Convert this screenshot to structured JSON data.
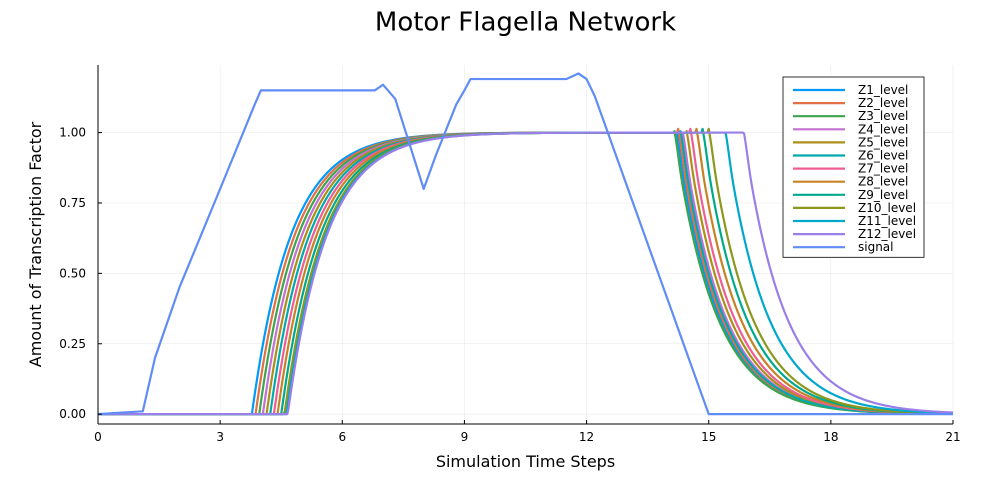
{
  "chart_data": {
    "type": "line",
    "title": "Motor Flagella Network",
    "xlabel": "Simulation Time Steps",
    "ylabel": "Amount of Transcription Factor",
    "xlim": [
      0,
      21
    ],
    "ylim": [
      -0.035,
      1.24
    ],
    "xticks": [
      0,
      3,
      6,
      9,
      12,
      15,
      18,
      21
    ],
    "xtick_labels": [
      "0",
      "3",
      "6",
      "9",
      "12",
      "15",
      "18",
      "21"
    ],
    "yticks": [
      0,
      0.25,
      0.5,
      0.75,
      1.0
    ],
    "ytick_labels": [
      "0.00",
      "0.25",
      "0.50",
      "0.75",
      "1.00"
    ],
    "grid": true,
    "legend_position": "top-right",
    "series": [
      {
        "name": "Z1_level",
        "color": "#009af9",
        "onset": 3.78,
        "decay_start": 14.2,
        "tau_rise": 0.95,
        "tau_decay": 1.0
      },
      {
        "name": "Z2_level",
        "color": "#e26f46",
        "onset": 3.87,
        "decay_start": 14.25,
        "tau_rise": 0.95,
        "tau_decay": 1.0
      },
      {
        "name": "Z3_level",
        "color": "#3da44d",
        "onset": 3.96,
        "decay_start": 14.15,
        "tau_rise": 0.95,
        "tau_decay": 1.0
      },
      {
        "name": "Z4_level",
        "color": "#c271d2",
        "onset": 4.05,
        "decay_start": 14.35,
        "tau_rise": 0.95,
        "tau_decay": 1.0
      },
      {
        "name": "Z5_level",
        "color": "#ac8e18",
        "onset": 4.14,
        "decay_start": 14.45,
        "tau_rise": 0.95,
        "tau_decay": 1.0
      },
      {
        "name": "Z6_level",
        "color": "#00a9ad",
        "onset": 4.23,
        "decay_start": 14.3,
        "tau_rise": 0.95,
        "tau_decay": 1.0
      },
      {
        "name": "Z7_level",
        "color": "#ed5e93",
        "onset": 4.32,
        "decay_start": 14.55,
        "tau_rise": 0.95,
        "tau_decay": 1.0
      },
      {
        "name": "Z8_level",
        "color": "#c68225",
        "onset": 4.41,
        "decay_start": 14.7,
        "tau_rise": 0.95,
        "tau_decay": 1.0
      },
      {
        "name": "Z9_level",
        "color": "#00a98d",
        "onset": 4.5,
        "decay_start": 14.85,
        "tau_rise": 0.95,
        "tau_decay": 1.0
      },
      {
        "name": "Z10_level",
        "color": "#8e971d",
        "onset": 4.58,
        "decay_start": 15.0,
        "tau_rise": 0.95,
        "tau_decay": 1.0
      },
      {
        "name": "Z11_level",
        "color": "#00a8cb",
        "onset": 4.63,
        "decay_start": 15.4,
        "tau_rise": 0.95,
        "tau_decay": 1.0
      },
      {
        "name": "Z12_level",
        "color": "#9b7fe9",
        "onset": 4.66,
        "decay_start": 15.85,
        "tau_rise": 0.95,
        "tau_decay": 1.0
      }
    ],
    "signal": {
      "name": "signal",
      "color": "#608cf6",
      "x": [
        0,
        1.1,
        1.4,
        2.0,
        3.0,
        3.85,
        4.0,
        6.8,
        7.0,
        7.3,
        8.0,
        8.3,
        8.8,
        9.0,
        9.15,
        11.5,
        11.8,
        12.0,
        12.2,
        15.0,
        21.0
      ],
      "y": [
        0.0,
        0.01,
        0.2,
        0.45,
        0.8,
        1.1,
        1.15,
        1.15,
        1.17,
        1.12,
        0.8,
        0.92,
        1.1,
        1.15,
        1.19,
        1.19,
        1.21,
        1.19,
        1.13,
        0.0,
        0.0
      ]
    }
  }
}
